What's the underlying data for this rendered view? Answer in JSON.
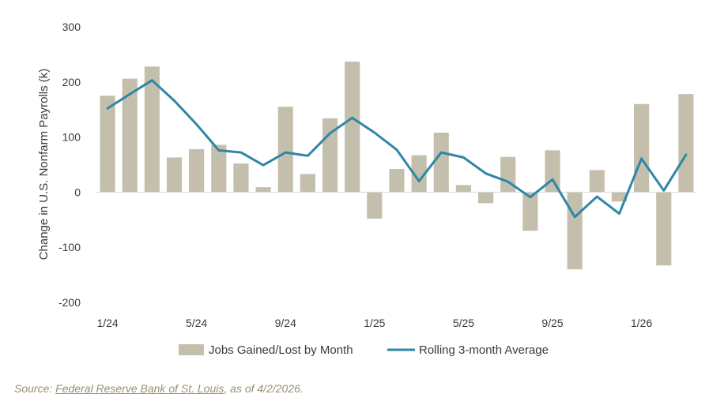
{
  "chart_data": {
    "type": "bar",
    "ylabel": "Change in U.S. Nonfarm Payrolls (k)",
    "ylim": [
      -200,
      300
    ],
    "yticks": [
      "300",
      "200",
      "100",
      "0",
      "-100",
      "-200"
    ],
    "x_tick_labels": [
      "1/24",
      "5/24",
      "9/24",
      "1/25",
      "5/25",
      "9/25",
      "1/26"
    ],
    "categories": [
      "1/24",
      "2/24",
      "3/24",
      "4/24",
      "5/24",
      "6/24",
      "7/24",
      "8/24",
      "9/24",
      "10/24",
      "11/24",
      "12/24",
      "1/25",
      "2/25",
      "3/25",
      "4/25",
      "5/25",
      "6/25",
      "7/25",
      "8/25",
      "9/25",
      "10/25",
      "11/25",
      "12/25",
      "1/26",
      "2/26",
      "3/26"
    ],
    "series": [
      {
        "name": "Jobs Gained/Lost by Month",
        "type": "bar",
        "color": "#c3bfac",
        "values": [
          175,
          206,
          228,
          63,
          78,
          86,
          52,
          9,
          155,
          33,
          134,
          237,
          -48,
          42,
          67,
          108,
          13,
          -20,
          64,
          -70,
          76,
          -140,
          40,
          -17,
          160,
          -133,
          178
        ]
      },
      {
        "name": "Rolling 3-month Average",
        "type": "line",
        "color": "#2f86a6",
        "values": [
          152,
          178,
          203,
          166,
          123,
          76,
          72,
          49,
          72,
          66,
          107,
          135,
          108,
          77,
          20,
          72,
          63,
          34,
          19,
          -9,
          23,
          -45,
          -8,
          -39,
          61,
          3,
          68
        ]
      }
    ],
    "legend_position": "bottom",
    "grid": false
  },
  "source": {
    "prefix": "Source: ",
    "link_text": "Federal Reserve Bank of St. Louis",
    "suffix": ", as of 4/2/2026."
  }
}
